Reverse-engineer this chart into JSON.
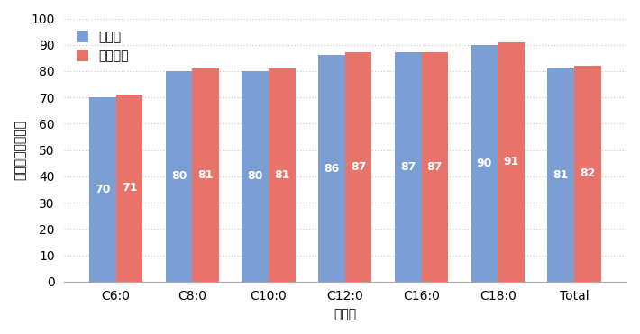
{
  "categories": [
    "C6:0",
    "C8:0",
    "C10:0",
    "C12:0",
    "C16:0",
    "C18:0",
    "Total"
  ],
  "series": [
    {
      "name": "従来法",
      "values": [
        70,
        80,
        80,
        86,
        87,
        90,
        81
      ],
      "color": "#7b9fd4"
    },
    {
      "name": "新キット",
      "values": [
        71,
        81,
        81,
        87,
        87,
        91,
        82
      ],
      "color": "#e8736a"
    }
  ],
  "xlabel": "脂肪酸",
  "ylabel": "メチル化率（％）",
  "ylim": [
    0,
    100
  ],
  "yticks": [
    0,
    10,
    20,
    30,
    40,
    50,
    60,
    70,
    80,
    90,
    100
  ],
  "bar_width": 0.35,
  "label_fontsize": 10,
  "tick_fontsize": 10,
  "legend_fontsize": 10,
  "value_label_fontsize": 9,
  "background_color": "#ffffff",
  "grid_color": "#cccccc"
}
